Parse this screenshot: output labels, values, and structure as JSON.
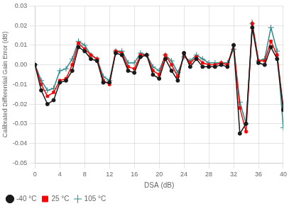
{
  "chart_data": {
    "type": "line",
    "title": "",
    "xlabel": "DSA (dB)",
    "ylabel": "Calibrated Differential Gain Error (dB)",
    "xlim": [
      0,
      40
    ],
    "ylim": [
      -0.05,
      0.03
    ],
    "xticks": [
      0,
      4,
      8,
      12,
      16,
      20,
      24,
      28,
      32,
      36,
      40
    ],
    "yticks": [
      -0.05,
      -0.04,
      -0.03,
      -0.02,
      -0.01,
      {
        "value": 0,
        "label": "0.00"
      },
      0.01,
      0.02,
      0.03
    ],
    "grid": true,
    "legend": "lower left",
    "x": [
      0,
      1,
      2,
      3,
      4,
      5,
      6,
      7,
      8,
      9,
      10,
      11,
      12,
      13,
      14,
      15,
      16,
      17,
      18,
      19,
      20,
      21,
      22,
      23,
      24,
      25,
      26,
      27,
      28,
      29,
      30,
      31,
      32,
      33,
      34,
      35,
      36,
      37,
      38,
      39,
      40
    ],
    "series": [
      {
        "name": "-40 °C",
        "color": "#1a1a1a",
        "marker": "circle",
        "values": [
          0.0,
          -0.013,
          -0.02,
          -0.018,
          -0.009,
          -0.008,
          -0.003,
          0.009,
          0.007,
          0.003,
          0.002,
          -0.009,
          -0.009,
          0.006,
          0.005,
          -0.003,
          -0.004,
          0.004,
          0.005,
          -0.005,
          -0.007,
          0.003,
          -0.003,
          -0.008,
          0.006,
          -0.001,
          0.003,
          -0.001,
          -0.001,
          -0.001,
          0.0,
          -0.001,
          0.01,
          -0.035,
          -0.03,
          0.019,
          0.001,
          0.0,
          0.009,
          0.003,
          -0.023
        ]
      },
      {
        "name": "25 °C",
        "color": "#ff0000",
        "marker": "square",
        "values": [
          0.0,
          -0.01,
          -0.016,
          -0.014,
          -0.008,
          -0.007,
          0.0,
          0.011,
          0.008,
          0.005,
          0.003,
          -0.008,
          -0.01,
          0.007,
          0.006,
          -0.001,
          -0.002,
          0.005,
          0.005,
          -0.003,
          -0.005,
          0.005,
          0.0,
          -0.006,
          0.005,
          0.001,
          0.004,
          0.001,
          0.0,
          0.0,
          0.001,
          0.0,
          0.01,
          -0.022,
          -0.034,
          0.021,
          0.002,
          0.002,
          0.012,
          0.005,
          -0.022
        ]
      },
      {
        "name": "105 °C",
        "color": "#2e8b8b",
        "marker": "plus",
        "values": [
          0.0,
          -0.008,
          -0.013,
          -0.012,
          -0.003,
          -0.002,
          0.003,
          0.012,
          0.01,
          0.005,
          0.003,
          -0.006,
          -0.008,
          0.007,
          0.007,
          0.001,
          0.001,
          0.006,
          0.005,
          -0.001,
          -0.003,
          0.005,
          0.002,
          -0.004,
          0.004,
          0.002,
          0.005,
          0.003,
          0.001,
          0.001,
          0.001,
          0.001,
          0.008,
          -0.019,
          -0.03,
          0.021,
          0.002,
          0.003,
          0.019,
          0.007,
          -0.032
        ]
      }
    ]
  }
}
